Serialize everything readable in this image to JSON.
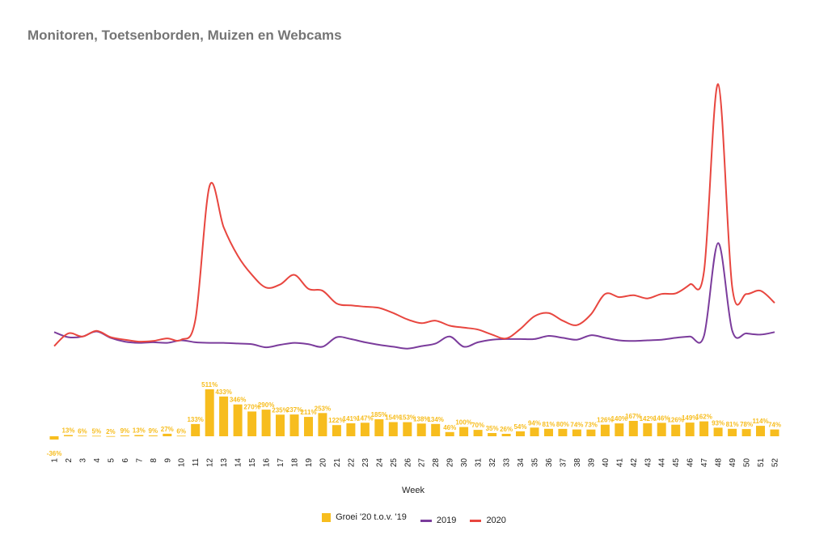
{
  "chart_data": {
    "type": "bar+line",
    "title": "Monitoren, Toetsenborden, Muizen en Webcams",
    "xlabel": "Week",
    "categories": [
      "1",
      "2",
      "3",
      "4",
      "5",
      "6",
      "7",
      "8",
      "9",
      "10",
      "11",
      "12",
      "13",
      "14",
      "15",
      "16",
      "17",
      "18",
      "19",
      "20",
      "21",
      "22",
      "23",
      "24",
      "25",
      "26",
      "27",
      "28",
      "29",
      "30",
      "31",
      "32",
      "33",
      "34",
      "35",
      "36",
      "37",
      "38",
      "39",
      "40",
      "41",
      "42",
      "43",
      "44",
      "45",
      "46",
      "47",
      "48",
      "49",
      "50",
      "51",
      "52"
    ],
    "bars": {
      "name": "Groei '20 t.o.v. '19",
      "color": "#f7bd1e",
      "values": [
        -36,
        13,
        6,
        5,
        2,
        9,
        13,
        9,
        27,
        6,
        133,
        511,
        433,
        346,
        270,
        290,
        235,
        237,
        211,
        253,
        122,
        141,
        147,
        185,
        154,
        153,
        138,
        134,
        46,
        100,
        70,
        35,
        26,
        54,
        94,
        81,
        80,
        74,
        73,
        126,
        140,
        167,
        142,
        146,
        126,
        149,
        162,
        93,
        81,
        78,
        114,
        74
      ],
      "labels": [
        "-36%",
        "13%",
        "6%",
        "5%",
        "2%",
        "9%",
        "13%",
        "9%",
        "27%",
        "6%",
        "133%",
        "511%",
        "433%",
        "346%",
        "270%",
        "290%",
        "235%",
        "237%",
        "211%",
        "253%",
        "122%",
        "141%",
        "147%",
        "185%",
        "154%",
        "153%",
        "138%",
        "134%",
        "46%",
        "100%",
        "70%",
        "35%",
        "26%",
        "54%",
        "94%",
        "81%",
        "80%",
        "74%",
        "73%",
        "126%",
        "140%",
        "167%",
        "142%",
        "146%",
        "126%",
        "149%",
        "162%",
        "93%",
        "81%",
        "78%",
        "114%",
        "74%"
      ]
    },
    "series": [
      {
        "name": "2019",
        "color": "#7b3c9c",
        "values": [
          20,
          12,
          13,
          21,
          11,
          5,
          3,
          4,
          3,
          7,
          4,
          3,
          3,
          2,
          1,
          -4,
          0,
          3,
          1,
          -3,
          12,
          9,
          4,
          0,
          -3,
          -6,
          -2,
          2,
          13,
          -3,
          4,
          8,
          9,
          9,
          9,
          14,
          11,
          8,
          15,
          11,
          7,
          6,
          7,
          8,
          11,
          13,
          14,
          160,
          22,
          18,
          16,
          20
        ]
      },
      {
        "name": "2020",
        "color": "#e8463f",
        "values": [
          -2,
          18,
          13,
          22,
          12,
          8,
          5,
          6,
          10,
          8,
          40,
          250,
          185,
          140,
          110,
          90,
          95,
          110,
          88,
          85,
          65,
          62,
          60,
          58,
          50,
          40,
          34,
          38,
          30,
          27,
          24,
          16,
          10,
          25,
          45,
          50,
          38,
          31,
          48,
          80,
          75,
          78,
          73,
          80,
          81,
          95,
          115,
          410,
          90,
          80,
          85,
          66
        ]
      }
    ],
    "legend_position": "bottom-center",
    "grid": false
  }
}
